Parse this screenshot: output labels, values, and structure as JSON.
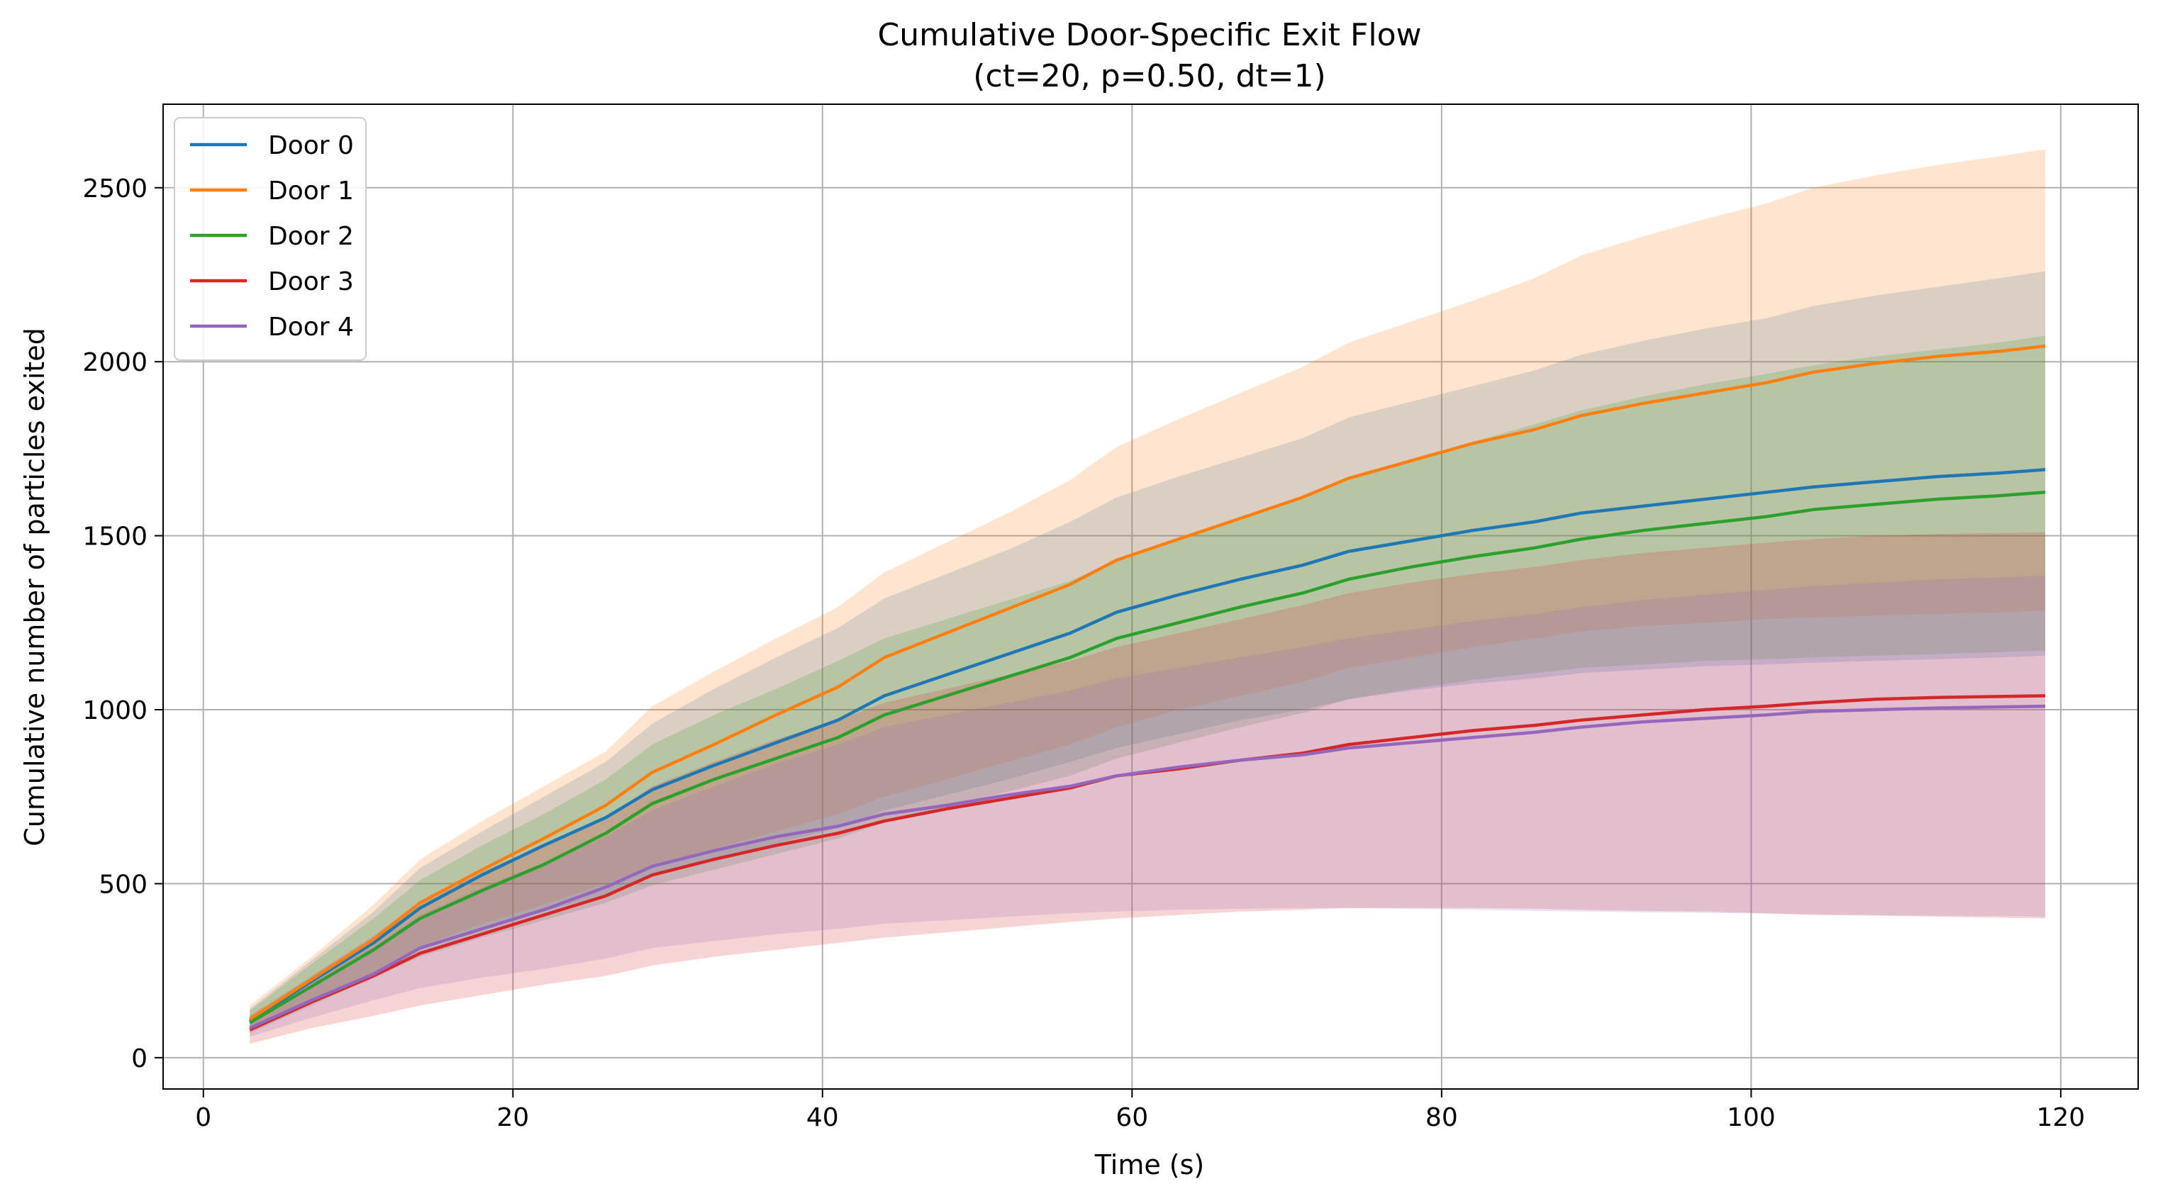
{
  "chart_data": {
    "type": "line",
    "title": "Cumulative Door-Specific Exit Flow",
    "subtitle": "(ct=20, p=0.50, dt=1)",
    "xlabel": "Time (s)",
    "ylabel": "Cumulative number of particles exited",
    "xlim": [
      -2.6,
      125
    ],
    "ylim": [
      -90,
      2740
    ],
    "xticks": [
      0,
      20,
      40,
      60,
      80,
      100,
      120
    ],
    "yticks": [
      0,
      500,
      1000,
      1500,
      2000,
      2500
    ],
    "grid": true,
    "legend_position": "top-left",
    "x": [
      3,
      7,
      11,
      14,
      18,
      22,
      26,
      29,
      33,
      37,
      41,
      44,
      48,
      52,
      56,
      59,
      63,
      67,
      71,
      74,
      78,
      82,
      86,
      89,
      93,
      97,
      101,
      104,
      108,
      112,
      116,
      119
    ],
    "series": [
      {
        "name": "Door 0",
        "color": "#1f77b4",
        "values": [
          105,
          220,
          330,
          430,
          525,
          610,
          690,
          770,
          840,
          905,
          970,
          1040,
          1100,
          1160,
          1220,
          1280,
          1330,
          1375,
          1415,
          1455,
          1485,
          1515,
          1540,
          1565,
          1585,
          1605,
          1625,
          1640,
          1655,
          1670,
          1680,
          1690
        ],
        "lower": [
          75,
          160,
          240,
          310,
          370,
          420,
          470,
          520,
          570,
          615,
          660,
          710,
          755,
          800,
          850,
          890,
          930,
          970,
          1000,
          1030,
          1055,
          1075,
          1090,
          1105,
          1115,
          1125,
          1130,
          1135,
          1140,
          1145,
          1150,
          1155
        ],
        "upper": [
          140,
          280,
          420,
          545,
          650,
          750,
          850,
          960,
          1060,
          1150,
          1235,
          1320,
          1390,
          1460,
          1540,
          1610,
          1670,
          1725,
          1780,
          1840,
          1885,
          1930,
          1975,
          2020,
          2060,
          2095,
          2125,
          2160,
          2190,
          2215,
          2240,
          2260
        ]
      },
      {
        "name": "Door 1",
        "color": "#ff7f0e",
        "values": [
          110,
          225,
          340,
          445,
          540,
          630,
          725,
          820,
          900,
          985,
          1065,
          1150,
          1220,
          1290,
          1360,
          1430,
          1490,
          1550,
          1610,
          1665,
          1715,
          1765,
          1805,
          1845,
          1880,
          1910,
          1940,
          1970,
          1995,
          2015,
          2030,
          2045
        ],
        "lower": [
          75,
          160,
          245,
          320,
          385,
          440,
          500,
          550,
          600,
          650,
          700,
          750,
          800,
          850,
          900,
          950,
          1000,
          1040,
          1080,
          1120,
          1150,
          1180,
          1205,
          1225,
          1240,
          1250,
          1260,
          1265,
          1270,
          1275,
          1280,
          1285
        ],
        "upper": [
          150,
          290,
          440,
          570,
          680,
          780,
          880,
          1010,
          1110,
          1205,
          1295,
          1395,
          1480,
          1565,
          1660,
          1755,
          1835,
          1910,
          1985,
          2055,
          2115,
          2175,
          2240,
          2305,
          2360,
          2410,
          2455,
          2500,
          2535,
          2565,
          2590,
          2610
        ]
      },
      {
        "name": "Door 2",
        "color": "#2ca02c",
        "values": [
          100,
          205,
          310,
          400,
          480,
          555,
          645,
          730,
          800,
          860,
          920,
          985,
          1040,
          1095,
          1150,
          1205,
          1250,
          1295,
          1335,
          1375,
          1410,
          1440,
          1465,
          1490,
          1515,
          1535,
          1555,
          1575,
          1590,
          1605,
          1615,
          1625
        ],
        "lower": [
          70,
          150,
          230,
          290,
          345,
          395,
          445,
          495,
          540,
          585,
          630,
          675,
          720,
          765,
          810,
          860,
          905,
          950,
          990,
          1030,
          1060,
          1085,
          1105,
          1120,
          1130,
          1140,
          1145,
          1150,
          1155,
          1160,
          1165,
          1170
        ],
        "upper": [
          135,
          270,
          400,
          510,
          610,
          700,
          800,
          900,
          985,
          1060,
          1140,
          1205,
          1260,
          1315,
          1370,
          1430,
          1490,
          1550,
          1610,
          1665,
          1720,
          1770,
          1820,
          1860,
          1900,
          1935,
          1965,
          1990,
          2015,
          2035,
          2055,
          2075
        ]
      },
      {
        "name": "Door 3",
        "color": "#d62728",
        "values": [
          80,
          160,
          235,
          300,
          355,
          410,
          465,
          525,
          570,
          610,
          645,
          680,
          715,
          745,
          775,
          810,
          830,
          855,
          875,
          900,
          920,
          940,
          955,
          970,
          985,
          1000,
          1010,
          1020,
          1030,
          1035,
          1038,
          1040
        ],
        "lower": [
          40,
          85,
          120,
          150,
          180,
          210,
          235,
          265,
          290,
          310,
          330,
          345,
          360,
          375,
          390,
          400,
          410,
          420,
          425,
          430,
          430,
          430,
          428,
          425,
          422,
          420,
          415,
          410,
          408,
          405,
          402,
          400
        ],
        "upper": [
          120,
          235,
          350,
          450,
          535,
          610,
          690,
          780,
          850,
          915,
          970,
          1020,
          1060,
          1100,
          1140,
          1180,
          1220,
          1260,
          1300,
          1335,
          1365,
          1390,
          1410,
          1430,
          1450,
          1465,
          1480,
          1490,
          1500,
          1505,
          1508,
          1510
        ]
      },
      {
        "name": "Door 4",
        "color": "#9467bd",
        "values": [
          85,
          165,
          240,
          315,
          370,
          425,
          490,
          550,
          595,
          635,
          665,
          700,
          725,
          755,
          780,
          810,
          835,
          855,
          870,
          890,
          905,
          920,
          935,
          950,
          965,
          975,
          985,
          995,
          1000,
          1005,
          1008,
          1010
        ],
        "lower": [
          60,
          115,
          165,
          200,
          230,
          255,
          285,
          315,
          335,
          355,
          370,
          385,
          395,
          405,
          415,
          420,
          425,
          428,
          430,
          430,
          428,
          425,
          422,
          420,
          418,
          416,
          414,
          412,
          410,
          408,
          407,
          405
        ],
        "upper": [
          110,
          220,
          320,
          410,
          490,
          560,
          635,
          710,
          780,
          845,
          900,
          950,
          985,
          1020,
          1055,
          1090,
          1120,
          1150,
          1180,
          1205,
          1230,
          1255,
          1275,
          1295,
          1315,
          1330,
          1345,
          1355,
          1365,
          1375,
          1380,
          1385
        ]
      }
    ]
  }
}
